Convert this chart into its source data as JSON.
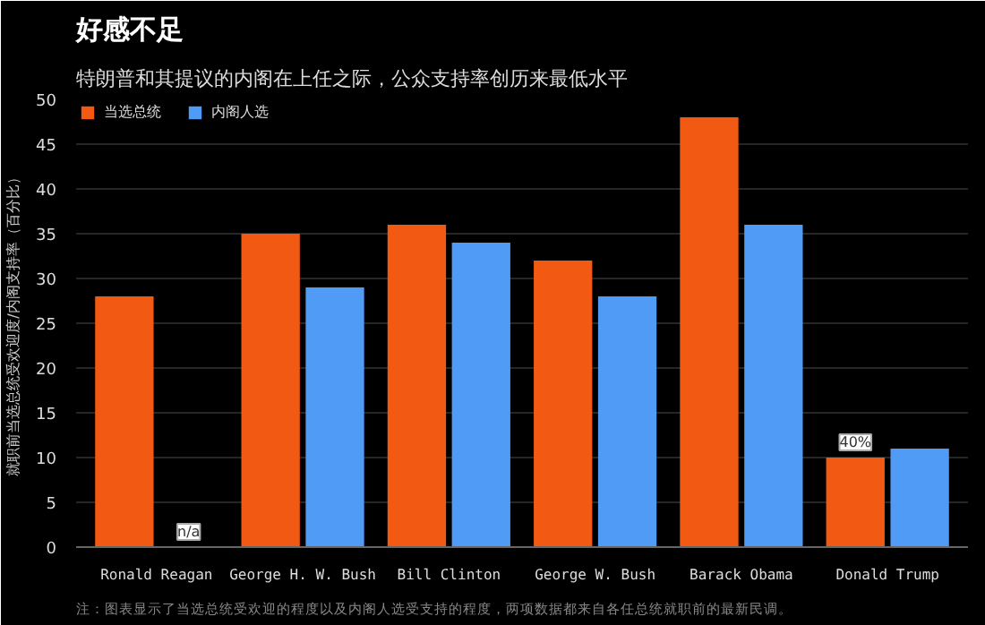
{
  "chart_data": {
    "type": "bar",
    "title": "好感不足",
    "subtitle": "特朗普和其提议的内阁在上任之际，公众支持率创历来最低水平",
    "ylabel": "就职前当选总统受欢迎度/内阁支持率（百分比）",
    "categories": [
      "Ronald Reagan",
      "George H. W. Bush",
      "Bill Clinton",
      "George W. Bush",
      "Barack Obama",
      "Donald Trump"
    ],
    "series": [
      {
        "name": "当选总统",
        "color": "#f25a13",
        "values": [
          28,
          35,
          36,
          32,
          48,
          10
        ]
      },
      {
        "name": "内阁人选",
        "color": "#4f9bf5",
        "values": [
          null,
          29,
          34,
          28,
          36,
          11
        ]
      }
    ],
    "ylim": [
      0,
      50
    ],
    "yticks": [
      0,
      5,
      10,
      15,
      20,
      25,
      30,
      35,
      40,
      45,
      50
    ],
    "grid": "y",
    "legend": "top left",
    "annotations": [
      {
        "text": "n/a",
        "x": "Ronald Reagan",
        "y": 0
      },
      {
        "text": "40%",
        "x": "Donald Trump",
        "y": 10
      },
      "注：图表显示了当选总统受欢迎的程度以及内阁人选受支持的程度，两项数据都来自各任总统就职前的最新民调。"
    ]
  }
}
